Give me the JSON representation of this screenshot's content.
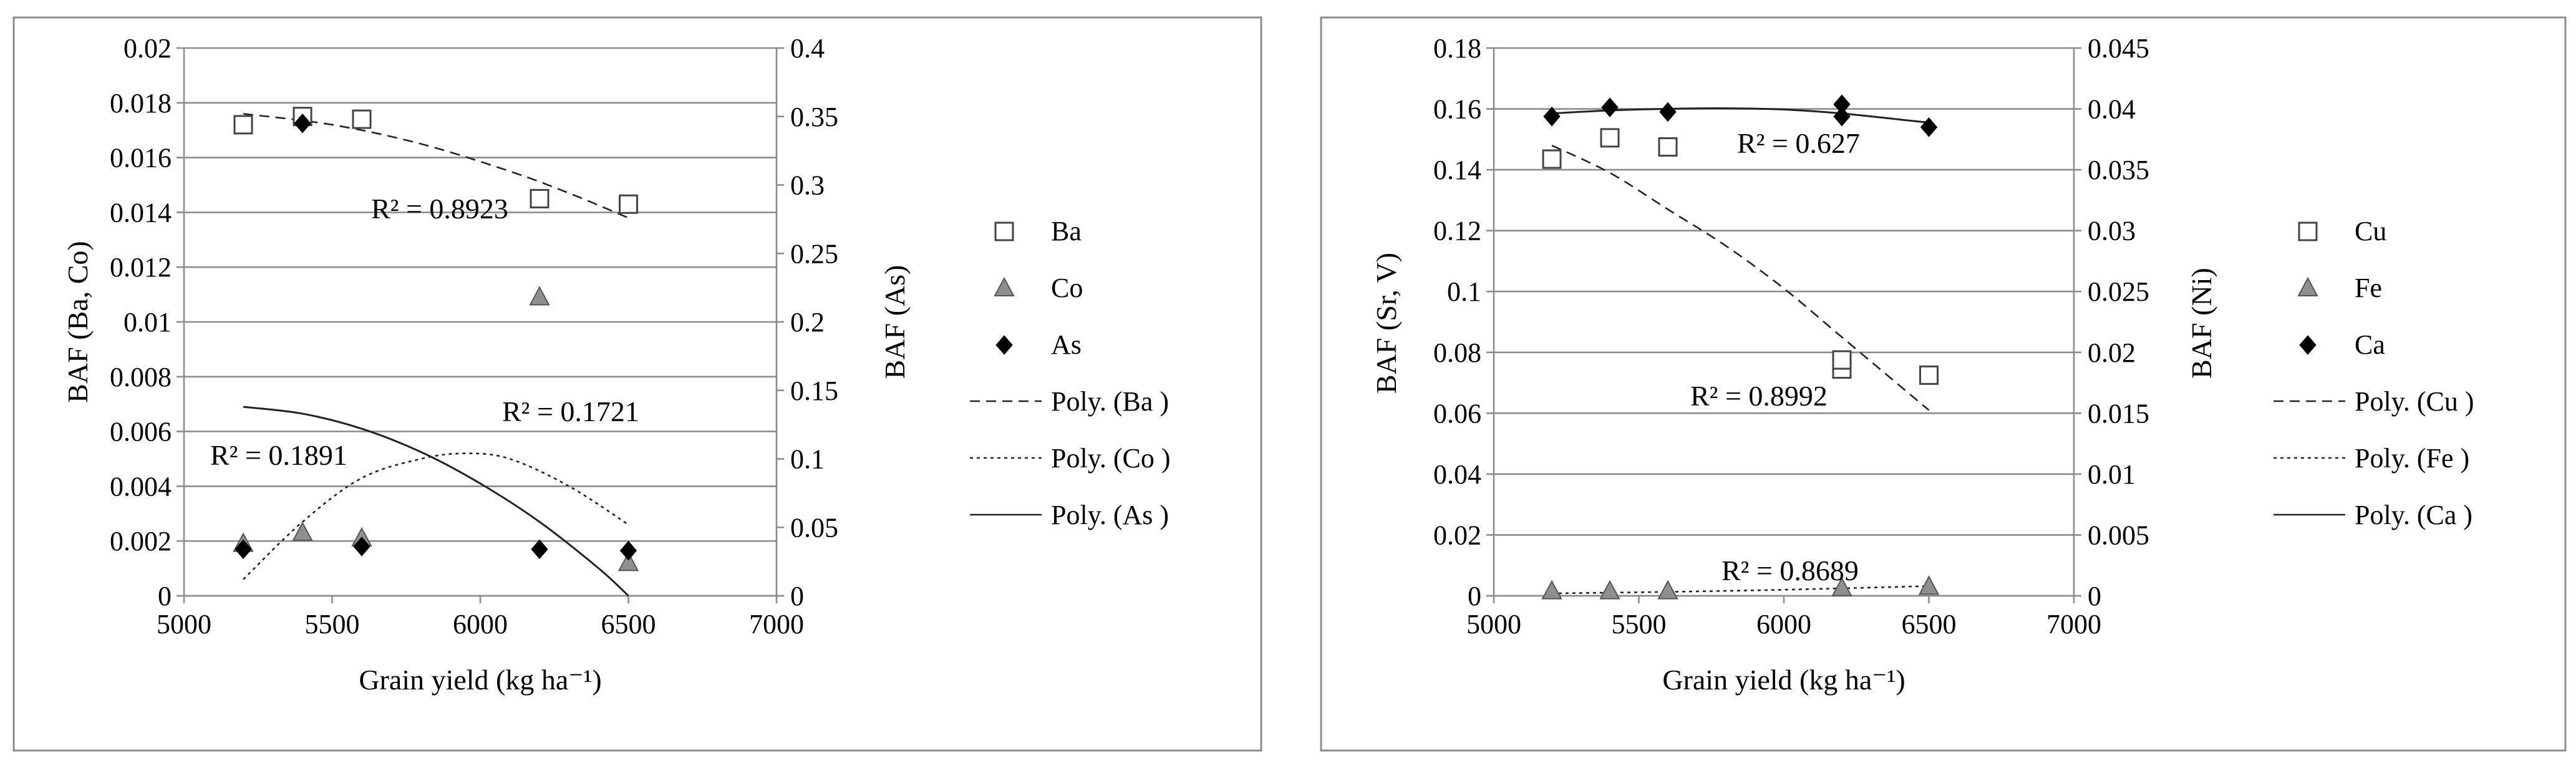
{
  "chart_data": [
    {
      "type": "scatter",
      "title": "",
      "xlabel": "Grain yield (kg ha⁻¹)",
      "ylabel_left": "BAF (Ba, Co)",
      "ylabel_right": "BAF (As)",
      "xlim": [
        5000,
        7000
      ],
      "xticks": [
        "5000",
        "5500",
        "6000",
        "6500",
        "7000"
      ],
      "ylim_left": [
        0,
        0.02
      ],
      "yticks_left": [
        "0",
        "0.002",
        "0.004",
        "0.006",
        "0.008",
        "0.01",
        "0.012",
        "0.014",
        "0.016",
        "0.018",
        "0.02"
      ],
      "ylim_right": [
        0,
        0.4
      ],
      "yticks_right": [
        "0",
        "0.05",
        "0.1",
        "0.15",
        "0.2",
        "0.25",
        "0.3",
        "0.35",
        "0.4"
      ],
      "grid": true,
      "legend": "right",
      "series": [
        {
          "name": "Ba",
          "marker": "open-square",
          "axis": "left",
          "x": [
            5200,
            5400,
            5600,
            6200,
            6500
          ],
          "y": [
            0.0172,
            0.0175,
            0.0174,
            0.0145,
            0.0143
          ]
        },
        {
          "name": "Co",
          "marker": "gray-triangle",
          "axis": "left",
          "x": [
            5200,
            5400,
            5600,
            6200,
            6500
          ],
          "y": [
            0.0019,
            0.0023,
            0.0021,
            0.0109,
            0.0012
          ]
        },
        {
          "name": "As",
          "marker": "black-diamond",
          "axis": "right",
          "x": [
            5200,
            5400,
            5600,
            6200,
            6500
          ],
          "y": [
            0.034,
            0.345,
            0.036,
            0.034,
            0.033
          ]
        }
      ],
      "trendlines": [
        {
          "name": "Poly. (Ba )",
          "style": "dashed",
          "axis": "left",
          "x": [
            5200,
            5500,
            5800,
            6100,
            6300,
            6500
          ],
          "y": [
            0.0176,
            0.0172,
            0.0165,
            0.0155,
            0.0147,
            0.0138
          ]
        },
        {
          "name": "Poly. (Co )",
          "style": "dotted",
          "axis": "left",
          "x": [
            5200,
            5400,
            5600,
            5800,
            5950,
            6100,
            6300,
            6500
          ],
          "y": [
            0.0006,
            0.0027,
            0.0043,
            0.005,
            0.0052,
            0.005,
            0.004,
            0.0026
          ]
        },
        {
          "name": "Poly. (As )",
          "style": "solid",
          "axis": "right",
          "x": [
            5200,
            5400,
            5600,
            5800,
            6000,
            6200,
            6400,
            6500
          ],
          "y": [
            0.138,
            0.133,
            0.122,
            0.105,
            0.082,
            0.054,
            0.02,
            0.0
          ]
        }
      ],
      "annotations": [
        "R² = 0.8923",
        "R² = 0.1721",
        "R² = 0.1891"
      ]
    },
    {
      "type": "scatter",
      "title": "",
      "xlabel": "Grain yield (kg ha⁻¹)",
      "ylabel_left": "BAF (Sr, V)",
      "ylabel_right": "BAF (Ni)",
      "xlim": [
        5000,
        7000
      ],
      "xticks": [
        "5000",
        "5500",
        "6000",
        "6500",
        "7000"
      ],
      "ylim_left": [
        0,
        0.18
      ],
      "yticks_left": [
        "0",
        "0.02",
        "0.04",
        "0.06",
        "0.08",
        "0.1",
        "0.12",
        "0.14",
        "0.16",
        "0.18"
      ],
      "ylim_right": [
        0,
        0.045
      ],
      "yticks_right": [
        "0",
        "0.005",
        "0.01",
        "0.015",
        "0.02",
        "0.025",
        "0.03",
        "0.035",
        "0.04",
        "0.045"
      ],
      "grid": true,
      "legend": "right",
      "series": [
        {
          "name": "Cu",
          "marker": "open-square",
          "axis": "left",
          "x": [
            5200,
            5400,
            5600,
            6200,
            6200,
            6500
          ],
          "y": [
            0.1435,
            0.1505,
            0.1475,
            0.0745,
            0.0775,
            0.0725
          ]
        },
        {
          "name": "Fe",
          "marker": "gray-triangle",
          "axis": "left",
          "x": [
            5200,
            5400,
            5600,
            6200,
            6500
          ],
          "y": [
            0.0015,
            0.0015,
            0.0015,
            0.0025,
            0.003
          ]
        },
        {
          "name": "Ca",
          "marker": "black-diamond",
          "axis": "left",
          "x": [
            5200,
            5400,
            5600,
            6200,
            6200,
            6500
          ],
          "y": [
            0.1575,
            0.1605,
            0.159,
            0.1575,
            0.1615,
            0.154
          ]
        }
      ],
      "trendlines": [
        {
          "name": "Poly. (Cu )",
          "style": "dashed",
          "axis": "left",
          "x": [
            5200,
            5400,
            5600,
            5800,
            6000,
            6200,
            6400,
            6500
          ],
          "y": [
            0.148,
            0.139,
            0.127,
            0.115,
            0.101,
            0.085,
            0.069,
            0.061
          ]
        },
        {
          "name": "Poly. (Fe )",
          "style": "dotted",
          "axis": "left",
          "x": [
            5200,
            5600,
            6000,
            6500
          ],
          "y": [
            0.0008,
            0.0013,
            0.002,
            0.0032
          ]
        },
        {
          "name": "Poly. (Ca )",
          "style": "solid",
          "axis": "left",
          "x": [
            5200,
            5400,
            5600,
            5800,
            6000,
            6200,
            6400,
            6500
          ],
          "y": [
            0.1585,
            0.1595,
            0.16,
            0.1602,
            0.1598,
            0.1585,
            0.1565,
            0.1555
          ]
        }
      ],
      "annotations": [
        "R² = 0.627",
        "R² = 0.8992",
        "R² = 0.8689"
      ]
    }
  ]
}
